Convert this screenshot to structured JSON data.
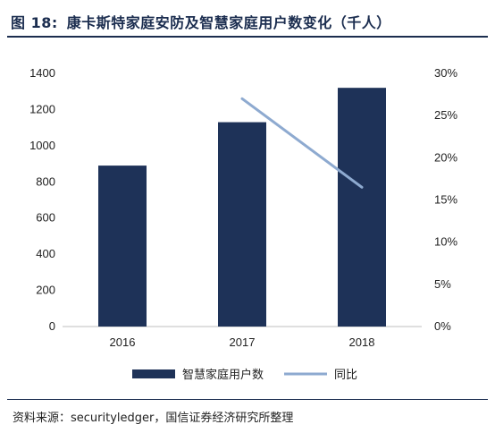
{
  "header": {
    "figure_label": "图 18:",
    "title": "康卡斯特家庭安防及智慧家庭用户数变化（千人）"
  },
  "chart_data": {
    "type": "bar",
    "categories": [
      "2016",
      "2017",
      "2018"
    ],
    "series": [
      {
        "name": "智慧家庭用户数",
        "type": "bar",
        "axis": "left",
        "values": [
          890,
          1130,
          1320
        ],
        "color": "#1e3258"
      },
      {
        "name": "同比",
        "type": "line",
        "axis": "right",
        "values": [
          null,
          27.0,
          16.5
        ],
        "color": "#8eaad0"
      }
    ],
    "y_left": {
      "min": 0,
      "max": 1400,
      "ticks": [
        "0",
        "200",
        "400",
        "600",
        "800",
        "1000",
        "1200",
        "1400"
      ]
    },
    "y_right": {
      "min": 0,
      "max": 30,
      "ticks": [
        "0%",
        "5%",
        "10%",
        "15%",
        "20%",
        "25%",
        "30%"
      ]
    },
    "grid": false,
    "legend_position": "bottom"
  },
  "footer": {
    "source_label": "资料来源：",
    "source_text": "securityledger，国信证券经济研究所整理"
  }
}
